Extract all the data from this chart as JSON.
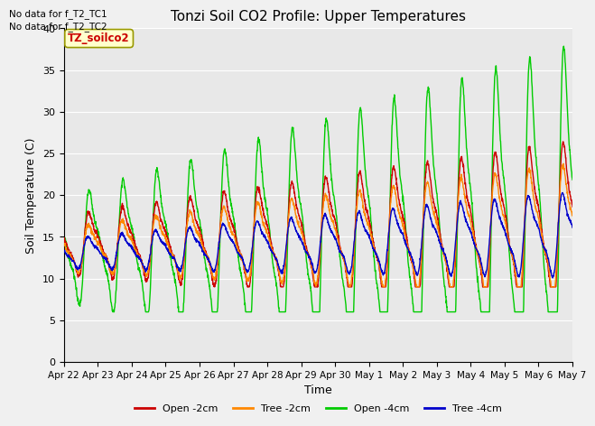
{
  "title": "Tonzi Soil CO2 Profile: Upper Temperatures",
  "xlabel": "Time",
  "ylabel": "Soil Temperature (C)",
  "ylim": [
    0,
    40
  ],
  "annotation1": "No data for f_T2_TC1",
  "annotation2": "No data for f_T2_TC2",
  "legend_box_label": "TZ_soilco2",
  "legend_labels": [
    "Open -2cm",
    "Tree -2cm",
    "Open -4cm",
    "Tree -4cm"
  ],
  "line_colors": [
    "#cc0000",
    "#ff8800",
    "#00cc00",
    "#0000cc"
  ],
  "xtick_labels": [
    "Apr 22",
    "Apr 23",
    "Apr 24",
    "Apr 25",
    "Apr 26",
    "Apr 27",
    "Apr 28",
    "Apr 29",
    "Apr 30",
    "May 1",
    "May 2",
    "May 3",
    "May 4",
    "May 5",
    "May 6",
    "May 7"
  ],
  "fig_facecolor": "#f0f0f0",
  "ax_facecolor": "#e8e8e8",
  "grid_color": "#ffffff"
}
